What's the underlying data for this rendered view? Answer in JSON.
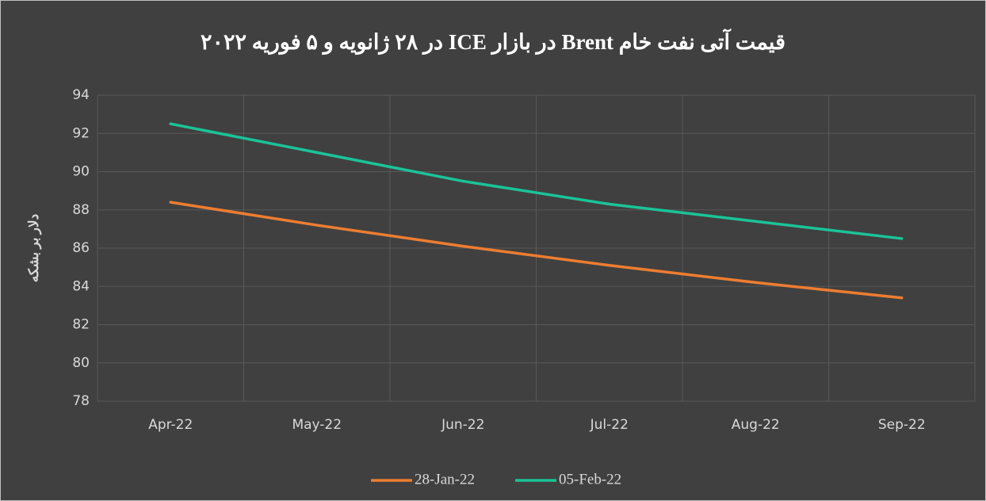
{
  "chart_data": {
    "type": "line",
    "title": "قیمت آتی نفت خام Brent در بازار ICE در ۲۸ ژانویه و ۵ فوریه ۲۰۲۲",
    "y_label": "دلار بر بشکه",
    "categories": [
      "Apr-22",
      "May-22",
      "Jun-22",
      "Jul-22",
      "Aug-22",
      "Sep-22"
    ],
    "series": [
      {
        "name": "28-Jan-22",
        "color": "#ed7d31",
        "values": [
          88.4,
          87.2,
          86.1,
          85.1,
          84.2,
          83.4
        ]
      },
      {
        "name": "05-Feb-22",
        "color": "#1bc398",
        "values": [
          92.5,
          91.0,
          89.5,
          88.3,
          87.4,
          86.5
        ]
      }
    ],
    "ylim": [
      78,
      94
    ],
    "yticks": [
      78,
      80,
      82,
      84,
      86,
      88,
      90,
      92,
      94
    ],
    "grid": true,
    "legend": "bottom"
  }
}
